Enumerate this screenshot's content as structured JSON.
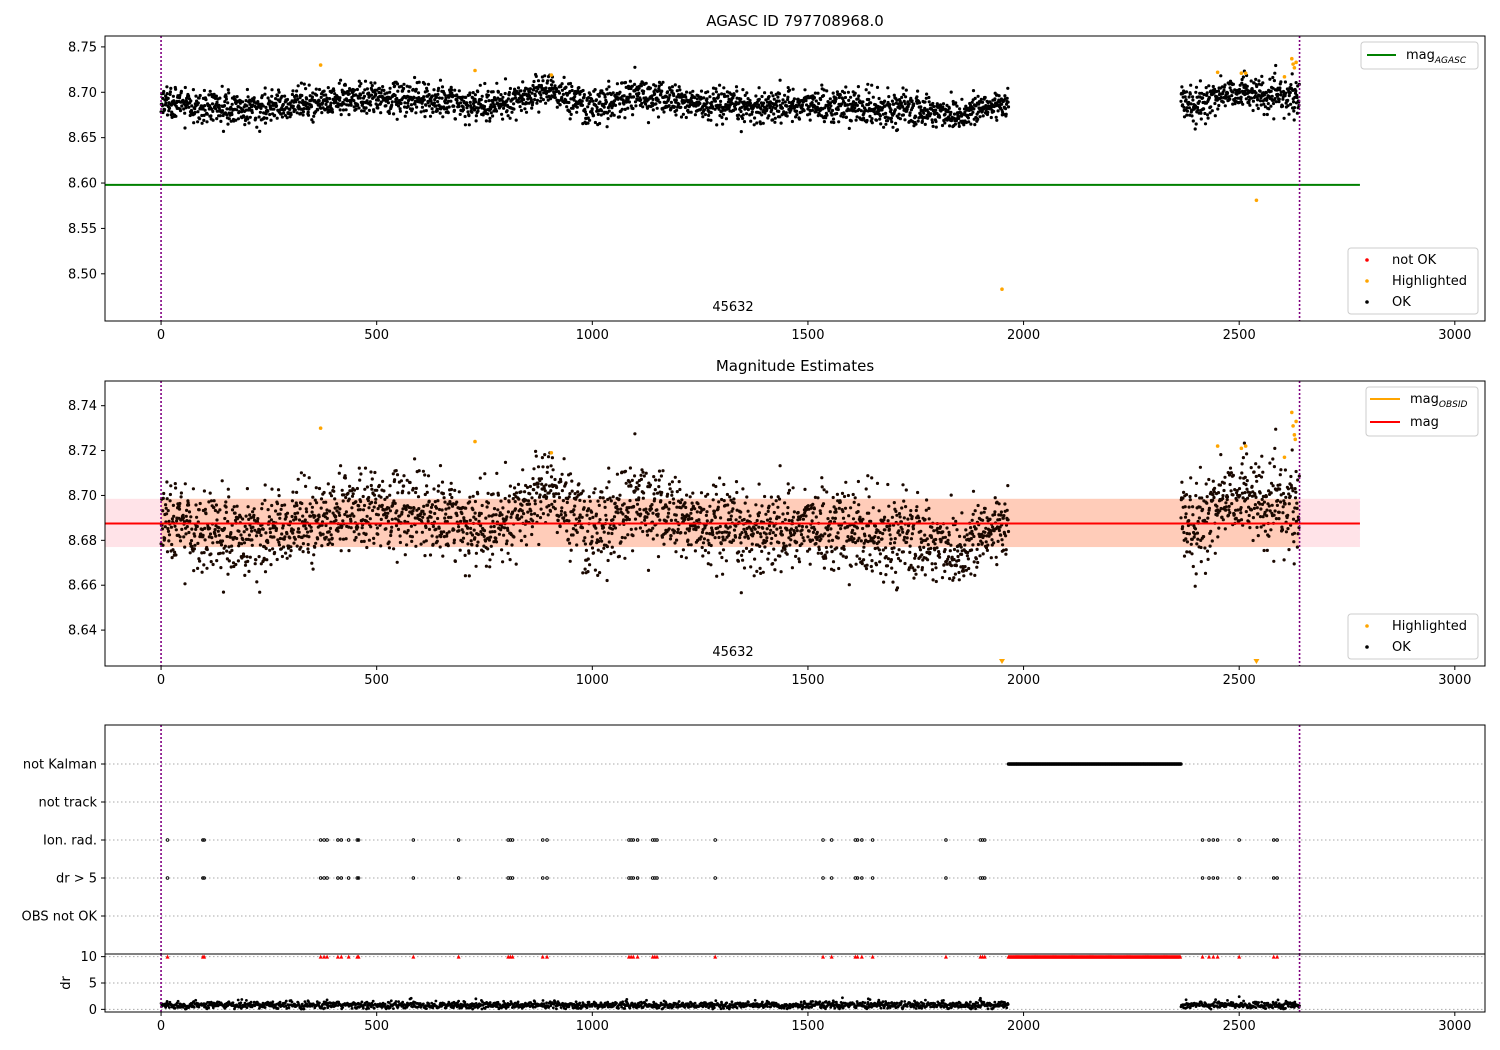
{
  "chart_data": [
    {
      "type": "scatter",
      "title": "AGASC ID 797708968.0",
      "annotation": "45632",
      "xlim": [
        -130,
        3070
      ],
      "ylim": [
        8.448,
        8.762
      ],
      "xticks": [
        0,
        500,
        1000,
        1500,
        2000,
        2500,
        3000
      ],
      "yticks": [
        8.5,
        8.55,
        8.6,
        8.65,
        8.7,
        8.75
      ],
      "yticks_labels": [
        "8.50",
        "8.55",
        "8.60",
        "8.65",
        "8.70",
        "8.75"
      ],
      "vlines": [
        0,
        2640
      ],
      "hline": {
        "name": "mag_AGASC",
        "y": 8.598,
        "x": [
          -130,
          2780
        ],
        "color": "#008000"
      },
      "legend_upper": [
        {
          "label": "mag",
          "subscript": "AGASC",
          "color": "#008000"
        }
      ],
      "legend_lower": [
        {
          "label": "not OK",
          "color": "#ff0000"
        },
        {
          "label": "Highlighted",
          "color": "#ffa500"
        },
        {
          "label": "OK",
          "color": "#000000"
        }
      ],
      "ok_series": {
        "name": "OK",
        "color": "#000000",
        "segments": [
          {
            "x": [
              0,
              1965
            ],
            "trend": [
              [
                0,
                8.688
              ],
              [
                200,
                8.68
              ],
              [
                400,
                8.693
              ],
              [
                600,
                8.692
              ],
              [
                750,
                8.683
              ],
              [
                900,
                8.703
              ],
              [
                1000,
                8.684
              ],
              [
                1100,
                8.697
              ],
              [
                1300,
                8.683
              ],
              [
                1500,
                8.686
              ],
              [
                1700,
                8.682
              ],
              [
                1860,
                8.676
              ],
              [
                1965,
                8.69
              ]
            ],
            "spread": 0.009
          },
          {
            "x": [
              2365,
              2640
            ],
            "trend": [
              [
                2365,
                8.69
              ],
              [
                2400,
                8.683
              ],
              [
                2450,
                8.697
              ],
              [
                2520,
                8.702
              ],
              [
                2560,
                8.692
              ],
              [
                2600,
                8.697
              ],
              [
                2640,
                8.692
              ]
            ],
            "spread": 0.009
          }
        ]
      },
      "highlighted": {
        "name": "Highlighted",
        "color": "#ffa500",
        "points": [
          [
            370,
            8.73
          ],
          [
            728,
            8.724
          ],
          [
            905,
            8.719
          ],
          [
            1950,
            8.483
          ],
          [
            2450,
            8.722
          ],
          [
            2505,
            8.721
          ],
          [
            2515,
            8.721
          ],
          [
            2540,
            8.581
          ],
          [
            2605,
            8.717
          ],
          [
            2622,
            8.737
          ],
          [
            2625,
            8.731
          ],
          [
            2628,
            8.727
          ],
          [
            2632,
            8.733
          ]
        ]
      }
    },
    {
      "type": "scatter",
      "title": "Magnitude Estimates",
      "annotation": "45632",
      "xlim": [
        -130,
        3070
      ],
      "ylim": [
        8.624,
        8.751
      ],
      "xticks": [
        0,
        500,
        1000,
        1500,
        2000,
        2500,
        3000
      ],
      "yticks": [
        8.64,
        8.66,
        8.68,
        8.7,
        8.72,
        8.74
      ],
      "yticks_labels": [
        "8.64",
        "8.66",
        "8.68",
        "8.70",
        "8.72",
        "8.74"
      ],
      "vlines": [
        0,
        2640
      ],
      "mag_line": {
        "name": "mag",
        "y": 8.6875,
        "x": [
          -130,
          2780
        ],
        "color": "#ff0000"
      },
      "band": {
        "low": 8.677,
        "high": 8.6985,
        "x": [
          -130,
          2780
        ]
      },
      "legend_upper": [
        {
          "label": "mag",
          "subscript": "OBSID",
          "color": "#ffa500"
        },
        {
          "label": "mag",
          "subscript": "",
          "color": "#ff0000"
        }
      ],
      "legend_lower": [
        {
          "label": "Highlighted",
          "color": "#ffa500"
        },
        {
          "label": "OK",
          "color": "#000000"
        }
      ],
      "highlighted": {
        "name": "Highlighted",
        "color": "#ffa500",
        "points": [
          [
            370,
            8.73
          ],
          [
            728,
            8.724
          ],
          [
            905,
            8.719
          ],
          [
            2450,
            8.722
          ],
          [
            2505,
            8.721
          ],
          [
            2515,
            8.722
          ],
          [
            2605,
            8.717
          ],
          [
            2622,
            8.737
          ],
          [
            2625,
            8.731
          ],
          [
            2628,
            8.727
          ],
          [
            2632,
            8.733
          ],
          [
            2630,
            8.725
          ]
        ],
        "below_axis": [
          1950,
          2540
        ]
      }
    },
    {
      "type": "scatter",
      "title": "",
      "xlim": [
        -130,
        3070
      ],
      "categories": [
        "not Kalman",
        "not track",
        "Ion. rad.",
        "dr > 5",
        "OBS not OK"
      ],
      "flag_points": {
        "not Kalman": {
          "from": 1965,
          "to": 2365
        },
        "not track": [],
        "Ion. rad.": [
          15,
          97,
          100,
          370,
          378,
          385,
          410,
          418,
          435,
          455,
          458,
          585,
          690,
          805,
          810,
          815,
          885,
          895,
          1085,
          1090,
          1095,
          1105,
          1140,
          1145,
          1150,
          1285,
          1535,
          1555,
          1610,
          1615,
          1625,
          1650,
          1820,
          1900,
          1905,
          1910,
          2415,
          2430,
          2440,
          2450,
          2500,
          2580,
          2588
        ],
        "dr > 5": [
          15,
          97,
          100,
          370,
          378,
          385,
          410,
          418,
          435,
          455,
          458,
          585,
          690,
          805,
          810,
          815,
          885,
          895,
          1085,
          1090,
          1095,
          1105,
          1140,
          1145,
          1150,
          1285,
          1535,
          1555,
          1610,
          1615,
          1625,
          1650,
          1820,
          1900,
          1905,
          1910,
          2415,
          2430,
          2440,
          2450,
          2500,
          2580,
          2588
        ],
        "OBS not OK": []
      },
      "vlines": [
        0,
        2640
      ]
    },
    {
      "type": "scatter",
      "title": "",
      "ylabel": "dr",
      "xlim": [
        -130,
        3070
      ],
      "ylim": [
        -0.5,
        10.5
      ],
      "xticks": [
        0,
        500,
        1000,
        1500,
        2000,
        2500,
        3000
      ],
      "yticks": [
        0,
        5,
        10
      ],
      "yticks_labels": [
        "0",
        "5",
        "10"
      ],
      "vlines": [
        0,
        2640
      ],
      "clipped_at": 10,
      "dr_segments": [
        {
          "x": [
            0,
            1965
          ]
        },
        {
          "x": [
            2365,
            2640
          ]
        }
      ],
      "dr_typical": 0.8,
      "dr_spikes": [
        [
          14,
          1.5
        ],
        [
          385,
          1.8
        ],
        [
          580,
          2.1
        ],
        [
          730,
          2.0
        ],
        [
          1080,
          1.9
        ],
        [
          1580,
          2.2
        ],
        [
          1640,
          2.0
        ],
        [
          1900,
          2.1
        ],
        [
          2500,
          2.4
        ],
        [
          2590,
          1.8
        ]
      ]
    }
  ],
  "colors": {
    "ok": "#000000",
    "highlighted": "#ffa500",
    "not_ok": "#ff0000",
    "agasc_line": "#008000",
    "mag_line": "#ff0000",
    "band": "#ffc8b4"
  }
}
